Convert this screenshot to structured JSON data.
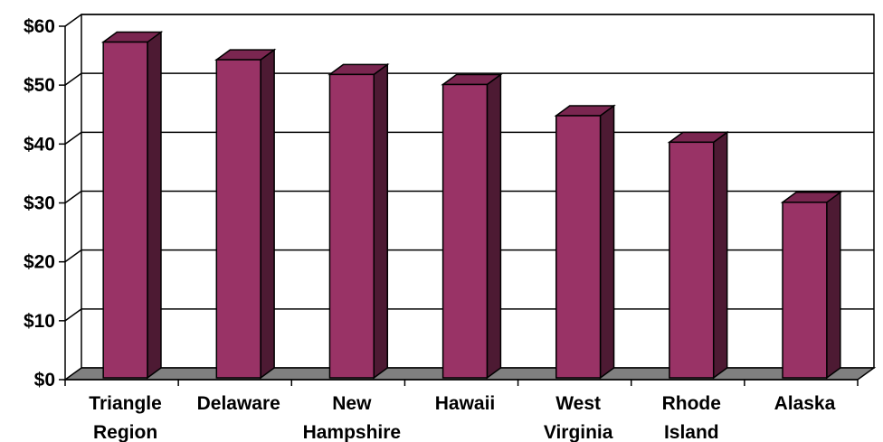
{
  "chart_data": {
    "type": "bar",
    "style": "3d-column",
    "title": "",
    "xlabel": "",
    "ylabel": "",
    "categories": [
      [
        "Triangle",
        "Region"
      ],
      [
        "Delaware"
      ],
      [
        "New",
        "Hampshire"
      ],
      [
        "Hawaii"
      ],
      [
        "West",
        "Virginia"
      ],
      [
        "Rhode",
        "Island"
      ],
      [
        "Alaska"
      ]
    ],
    "values": [
      57,
      54,
      51.5,
      49.8,
      44.5,
      40,
      29.8
    ],
    "ylim": [
      0,
      60
    ],
    "yticks": [
      0,
      10,
      20,
      30,
      40,
      50,
      60
    ],
    "ytick_labels": [
      "$0",
      "$10",
      "$20",
      "$30",
      "$40",
      "$50",
      "$60"
    ],
    "grid": true,
    "legend": "none",
    "colors": {
      "bar_front": "#993366",
      "bar_top": "#7a2650",
      "bar_side": "#4d1a33",
      "floor": "#808080",
      "grid": "#000000",
      "background": "#ffffff"
    }
  }
}
